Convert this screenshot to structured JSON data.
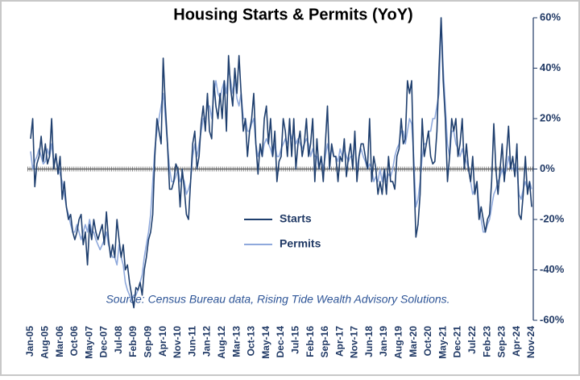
{
  "chart_data": {
    "type": "line",
    "title": "Housing Starts & Permits (YoY)",
    "annotation": "Source: Census Bureau data, Rising Tide Wealth Advisory Solutions.",
    "categories": [
      "Jan-05",
      null,
      null,
      null,
      null,
      null,
      null,
      "Aug-05",
      null,
      null,
      null,
      null,
      null,
      null,
      "Mar-06",
      null,
      null,
      null,
      null,
      null,
      null,
      "Oct-06",
      null,
      null,
      null,
      null,
      null,
      null,
      "May-07",
      null,
      null,
      null,
      null,
      null,
      null,
      "Dec-07",
      null,
      null,
      null,
      null,
      null,
      null,
      "Jul-08",
      null,
      null,
      null,
      null,
      null,
      null,
      "Feb-09",
      null,
      null,
      null,
      null,
      null,
      null,
      "Sep-09",
      null,
      null,
      null,
      null,
      null,
      null,
      "Apr-10",
      null,
      null,
      null,
      null,
      null,
      null,
      "Nov-10",
      null,
      null,
      null,
      null,
      null,
      null,
      "Jun-11",
      null,
      null,
      null,
      null,
      null,
      null,
      "Jan-12",
      null,
      null,
      null,
      null,
      null,
      null,
      "Aug-12",
      null,
      null,
      null,
      null,
      null,
      null,
      "Mar-13",
      null,
      null,
      null,
      null,
      null,
      null,
      "Oct-13",
      null,
      null,
      null,
      null,
      null,
      null,
      "May-14",
      null,
      null,
      null,
      null,
      null,
      null,
      "Dec-14",
      null,
      null,
      null,
      null,
      null,
      null,
      "Jul-15",
      null,
      null,
      null,
      null,
      null,
      null,
      "Feb-16",
      null,
      null,
      null,
      null,
      null,
      null,
      "Sep-16",
      null,
      null,
      null,
      null,
      null,
      null,
      "Apr-17",
      null,
      null,
      null,
      null,
      null,
      null,
      "Nov-17",
      null,
      null,
      null,
      null,
      null,
      null,
      "Jun-18",
      null,
      null,
      null,
      null,
      null,
      null,
      "Jan-19",
      null,
      null,
      null,
      null,
      null,
      null,
      "Aug-19",
      null,
      null,
      null,
      null,
      null,
      null,
      "Mar-20",
      null,
      null,
      null,
      null,
      null,
      null,
      "Oct-20",
      null,
      null,
      null,
      null,
      null,
      null,
      "May-21",
      null,
      null,
      null,
      null,
      null,
      null,
      "Dec-21",
      null,
      null,
      null,
      null,
      null,
      null,
      "Jul-22",
      null,
      null,
      null,
      null,
      null,
      null,
      "Feb-23",
      null,
      null,
      null,
      null,
      null,
      null,
      "Sep-23",
      null,
      null,
      null,
      null,
      null,
      null,
      "Apr-24",
      null,
      null,
      null,
      null,
      null,
      null,
      "Nov-24"
    ],
    "series": [
      {
        "name": "Starts",
        "color": "#1f3f6e",
        "values": [
          12,
          20,
          -7,
          2,
          5,
          13,
          3,
          10,
          2,
          5,
          20,
          0,
          6,
          -2,
          5,
          -12,
          -5,
          -15,
          -20,
          -18,
          -25,
          -28,
          -25,
          -20,
          -18,
          -30,
          -25,
          -38,
          -22,
          -28,
          -20,
          -25,
          -28,
          -25,
          -22,
          -30,
          -17,
          -28,
          -35,
          -30,
          -35,
          -20,
          -28,
          -35,
          -30,
          -40,
          -38,
          -45,
          -50,
          -55,
          -47,
          -48,
          -45,
          -50,
          -40,
          -35,
          -28,
          -25,
          -18,
          5,
          20,
          15,
          10,
          44,
          25,
          10,
          -8,
          -8,
          -5,
          2,
          0,
          -15,
          0,
          -8,
          -18,
          -20,
          -5,
          10,
          15,
          0,
          5,
          18,
          25,
          15,
          30,
          15,
          12,
          35,
          25,
          20,
          30,
          20,
          35,
          15,
          45,
          32,
          25,
          40,
          30,
          45,
          30,
          15,
          20,
          5,
          15,
          20,
          30,
          10,
          -2,
          10,
          5,
          20,
          25,
          10,
          20,
          5,
          15,
          -5,
          3,
          5,
          20,
          15,
          5,
          20,
          5,
          20,
          0,
          10,
          15,
          5,
          10,
          20,
          5,
          10,
          20,
          -5,
          12,
          0,
          5,
          -5,
          10,
          25,
          0,
          10,
          5,
          5,
          -5,
          5,
          3,
          12,
          -3,
          5,
          10,
          0,
          15,
          -5,
          5,
          10,
          10,
          5,
          0,
          20,
          -5,
          5,
          0,
          -10,
          -5,
          -10,
          0,
          -10,
          5,
          -5,
          -5,
          -8,
          5,
          8,
          20,
          10,
          12,
          35,
          30,
          35,
          0,
          -27,
          -22,
          -10,
          20,
          5,
          10,
          15,
          5,
          2,
          3,
          15,
          40,
          60,
          35,
          20,
          -5,
          5,
          20,
          15,
          20,
          5,
          10,
          20,
          0,
          10,
          0,
          -5,
          5,
          -10,
          -5,
          -20,
          -15,
          -20,
          -25,
          -20,
          -18,
          -5,
          18,
          0,
          -10,
          0,
          10,
          -5,
          5,
          17,
          0,
          5,
          -3,
          10,
          -18,
          -20,
          -10,
          5,
          -10,
          -5,
          -15
        ]
      },
      {
        "name": "Permits",
        "color": "#8fa9dc",
        "values": [
          7,
          0,
          3,
          5,
          8,
          5,
          2,
          3,
          8,
          5,
          10,
          3,
          5,
          0,
          -2,
          -5,
          -10,
          -15,
          -18,
          -22,
          -25,
          -25,
          -22,
          -25,
          -28,
          -25,
          -22,
          -25,
          -20,
          -25,
          -25,
          -28,
          -30,
          -32,
          -30,
          -28,
          -25,
          -30,
          -33,
          -35,
          -35,
          -38,
          -30,
          -35,
          -38,
          -45,
          -48,
          -50,
          -52,
          -50,
          -50,
          -48,
          -45,
          -42,
          -35,
          -30,
          -25,
          -18,
          -5,
          8,
          15,
          20,
          25,
          30,
          20,
          10,
          0,
          -5,
          -5,
          -3,
          0,
          -5,
          -3,
          -5,
          -10,
          -8,
          -5,
          5,
          10,
          5,
          10,
          15,
          20,
          20,
          25,
          25,
          20,
          30,
          35,
          30,
          28,
          32,
          35,
          30,
          40,
          35,
          30,
          35,
          28,
          25,
          30,
          20,
          20,
          15,
          15,
          18,
          20,
          10,
          5,
          8,
          5,
          10,
          12,
          10,
          8,
          5,
          10,
          5,
          5,
          8,
          10,
          12,
          10,
          15,
          12,
          15,
          10,
          12,
          10,
          8,
          10,
          12,
          10,
          5,
          8,
          5,
          5,
          0,
          5,
          0,
          5,
          10,
          5,
          8,
          5,
          5,
          3,
          8,
          5,
          8,
          5,
          3,
          5,
          5,
          10,
          0,
          5,
          8,
          5,
          3,
          0,
          2,
          0,
          -5,
          -3,
          -5,
          0,
          -5,
          0,
          -5,
          -2,
          -3,
          0,
          5,
          8,
          10,
          15,
          15,
          10,
          15,
          20,
          18,
          5,
          -15,
          -12,
          -5,
          5,
          10,
          10,
          15,
          15,
          20,
          20,
          25,
          30,
          60,
          40,
          25,
          10,
          5,
          15,
          15,
          10,
          8,
          5,
          8,
          5,
          3,
          0,
          -5,
          -10,
          -8,
          -5,
          -15,
          -20,
          -25,
          -25,
          -22,
          -20,
          -15,
          -10,
          -8,
          -5,
          -3,
          0,
          -3,
          0,
          5,
          0,
          0,
          2,
          0,
          -10,
          -12,
          -8,
          -5,
          -8,
          -5,
          -8
        ]
      }
    ],
    "ylim": [
      -60,
      60
    ],
    "yticks": [
      {
        "value": -60,
        "label": "-60%"
      },
      {
        "value": -40,
        "label": "-40%"
      },
      {
        "value": -20,
        "label": "-20%"
      },
      {
        "value": 0,
        "label": "0%"
      },
      {
        "value": 20,
        "label": "20%"
      },
      {
        "value": 40,
        "label": "40%"
      },
      {
        "value": 60,
        "label": "60%"
      }
    ],
    "y_axis_side": "right"
  }
}
